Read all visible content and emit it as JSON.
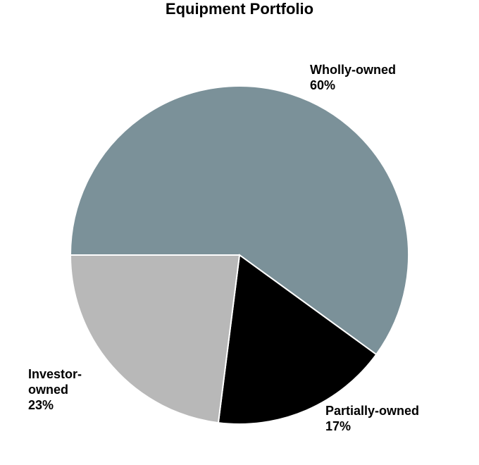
{
  "chart_data": {
    "type": "pie",
    "title": "Equipment Portfolio",
    "slices": [
      {
        "label_lines": [
          "Wholly-owned"
        ],
        "percent_text": "60%",
        "value": 60,
        "color": "#7b9199"
      },
      {
        "label_lines": [
          "Partially-owned"
        ],
        "percent_text": "17%",
        "value": 17,
        "color": "#000000"
      },
      {
        "label_lines": [
          "Investor-",
          "owned"
        ],
        "percent_text": "23%",
        "value": 23,
        "color": "#b8b8b8"
      }
    ],
    "start_direction": "west",
    "order": "clockwise",
    "slice_border_color": "#ffffff",
    "legend": "none"
  }
}
